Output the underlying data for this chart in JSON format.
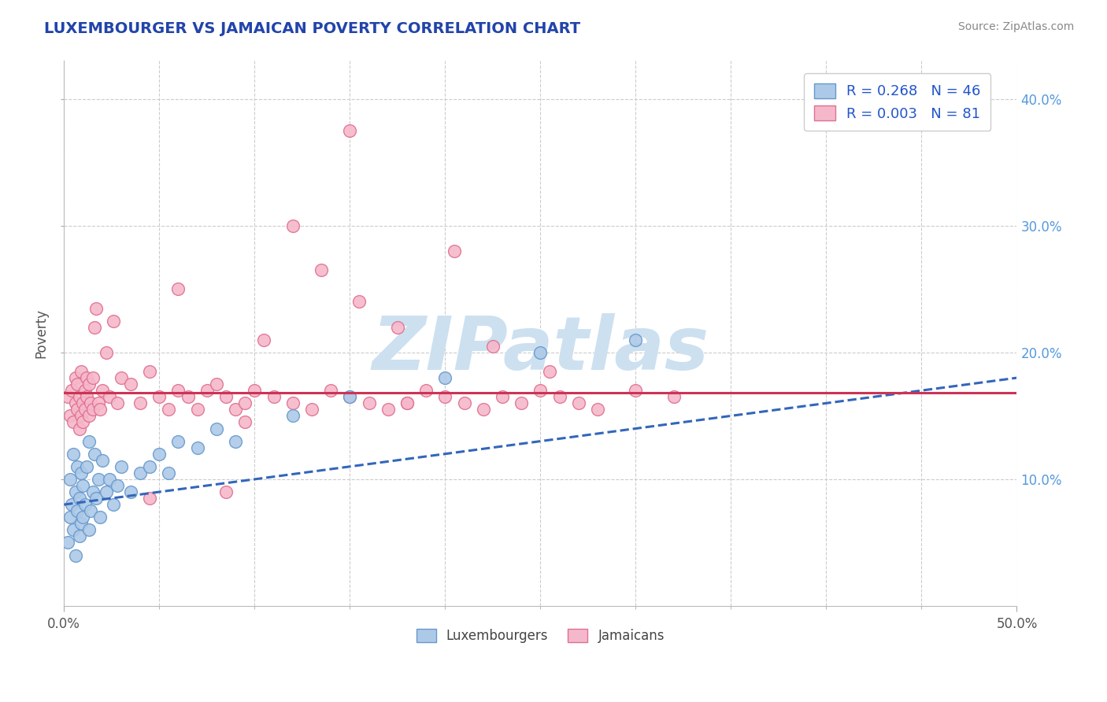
{
  "title": "LUXEMBOURGER VS JAMAICAN POVERTY CORRELATION CHART",
  "source": "Source: ZipAtlas.com",
  "ylabel": "Poverty",
  "xlim": [
    0.0,
    50.0
  ],
  "ylim": [
    0.0,
    43.0
  ],
  "yticks_right": [
    10.0,
    20.0,
    30.0,
    40.0
  ],
  "ytick_labels_right": [
    "10.0%",
    "20.0%",
    "30.0%",
    "40.0%"
  ],
  "xticks_minor": [
    0.0,
    5.0,
    10.0,
    15.0,
    20.0,
    25.0,
    30.0,
    35.0,
    40.0,
    45.0,
    50.0
  ],
  "blue_color": "#adc9e8",
  "pink_color": "#f5b8ca",
  "blue_edge_color": "#6699cc",
  "pink_edge_color": "#e07090",
  "blue_line_color": "#3366bb",
  "pink_line_color": "#cc3355",
  "blue_R": 0.268,
  "blue_N": 46,
  "pink_R": 0.003,
  "pink_N": 81,
  "blue_trend_x0": 0.0,
  "blue_trend_y0": 8.0,
  "blue_trend_x1": 50.0,
  "blue_trend_y1": 18.0,
  "pink_trend_x0": 0.0,
  "pink_trend_y0": 16.8,
  "pink_trend_x1": 50.0,
  "pink_trend_y1": 16.8,
  "blue_scatter_x": [
    0.2,
    0.3,
    0.3,
    0.4,
    0.5,
    0.5,
    0.6,
    0.6,
    0.7,
    0.7,
    0.8,
    0.8,
    0.9,
    0.9,
    1.0,
    1.0,
    1.1,
    1.2,
    1.3,
    1.3,
    1.4,
    1.5,
    1.6,
    1.7,
    1.8,
    1.9,
    2.0,
    2.2,
    2.4,
    2.6,
    2.8,
    3.0,
    3.5,
    4.0,
    4.5,
    5.0,
    5.5,
    6.0,
    7.0,
    8.0,
    9.0,
    12.0,
    15.0,
    20.0,
    25.0,
    30.0
  ],
  "blue_scatter_y": [
    5.0,
    7.0,
    10.0,
    8.0,
    6.0,
    12.0,
    4.0,
    9.0,
    7.5,
    11.0,
    5.5,
    8.5,
    6.5,
    10.5,
    7.0,
    9.5,
    8.0,
    11.0,
    6.0,
    13.0,
    7.5,
    9.0,
    12.0,
    8.5,
    10.0,
    7.0,
    11.5,
    9.0,
    10.0,
    8.0,
    9.5,
    11.0,
    9.0,
    10.5,
    11.0,
    12.0,
    10.5,
    13.0,
    12.5,
    14.0,
    13.0,
    15.0,
    16.5,
    18.0,
    20.0,
    21.0
  ],
  "pink_scatter_x": [
    0.2,
    0.3,
    0.4,
    0.5,
    0.6,
    0.6,
    0.7,
    0.7,
    0.8,
    0.8,
    0.9,
    0.9,
    1.0,
    1.0,
    1.1,
    1.1,
    1.2,
    1.2,
    1.3,
    1.3,
    1.4,
    1.5,
    1.5,
    1.6,
    1.7,
    1.8,
    1.9,
    2.0,
    2.2,
    2.4,
    2.6,
    2.8,
    3.0,
    3.5,
    4.0,
    4.5,
    5.0,
    5.5,
    6.0,
    6.5,
    7.0,
    7.5,
    8.0,
    8.5,
    9.0,
    9.5,
    10.0,
    11.0,
    12.0,
    13.0,
    14.0,
    15.0,
    16.0,
    17.0,
    18.0,
    19.0,
    20.0,
    21.0,
    22.0,
    23.0,
    24.0,
    25.0,
    26.0,
    27.0,
    28.0,
    30.0,
    32.0,
    6.0,
    10.5,
    13.5,
    15.5,
    17.5,
    20.5,
    25.5,
    15.0,
    8.5,
    12.0,
    4.5,
    22.5,
    18.0,
    9.5
  ],
  "pink_scatter_y": [
    16.5,
    15.0,
    17.0,
    14.5,
    16.0,
    18.0,
    15.5,
    17.5,
    14.0,
    16.5,
    15.0,
    18.5,
    16.0,
    14.5,
    17.0,
    15.5,
    16.5,
    18.0,
    15.0,
    17.5,
    16.0,
    15.5,
    18.0,
    22.0,
    23.5,
    16.0,
    15.5,
    17.0,
    20.0,
    16.5,
    22.5,
    16.0,
    18.0,
    17.5,
    16.0,
    18.5,
    16.5,
    15.5,
    17.0,
    16.5,
    15.5,
    17.0,
    17.5,
    16.5,
    15.5,
    16.0,
    17.0,
    16.5,
    16.0,
    15.5,
    17.0,
    16.5,
    16.0,
    15.5,
    16.0,
    17.0,
    16.5,
    16.0,
    15.5,
    16.5,
    16.0,
    17.0,
    16.5,
    16.0,
    15.5,
    17.0,
    16.5,
    25.0,
    21.0,
    26.5,
    24.0,
    22.0,
    28.0,
    18.5,
    37.5,
    9.0,
    30.0,
    8.5,
    20.5,
    16.0,
    14.5
  ],
  "watermark": "ZIPatlas",
  "watermark_color": "#cce0f0",
  "background_color": "#ffffff",
  "grid_color": "#cccccc",
  "title_color": "#2244aa",
  "source_color": "#888888",
  "legend_label_color": "#2255cc"
}
